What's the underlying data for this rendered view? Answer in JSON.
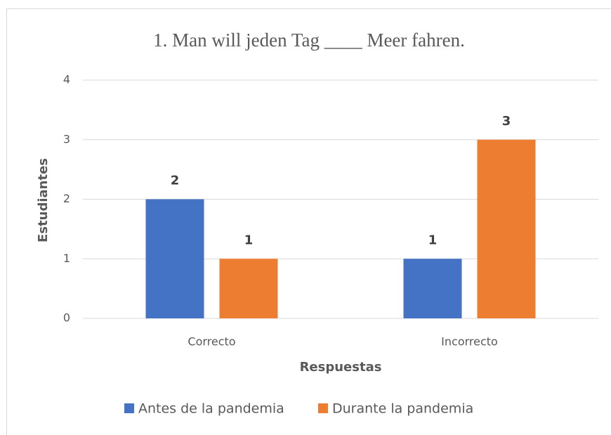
{
  "chart_data": {
    "type": "bar",
    "title": "1. Man will  jeden Tag ____ Meer fahren.",
    "categories": [
      "Correcto",
      "Incorrecto"
    ],
    "series": [
      {
        "name": "Antes de la pandemia",
        "color": "#4472c4",
        "values": [
          2,
          1
        ]
      },
      {
        "name": "Durante la pandemia",
        "color": "#ed7d31",
        "values": [
          1,
          3
        ]
      }
    ],
    "xlabel": "Respuestas",
    "ylabel": "Estudiantes",
    "ylim": [
      0,
      4
    ],
    "yticks": [
      0,
      1,
      2,
      3,
      4
    ],
    "grid": true,
    "legend": "bottom"
  }
}
